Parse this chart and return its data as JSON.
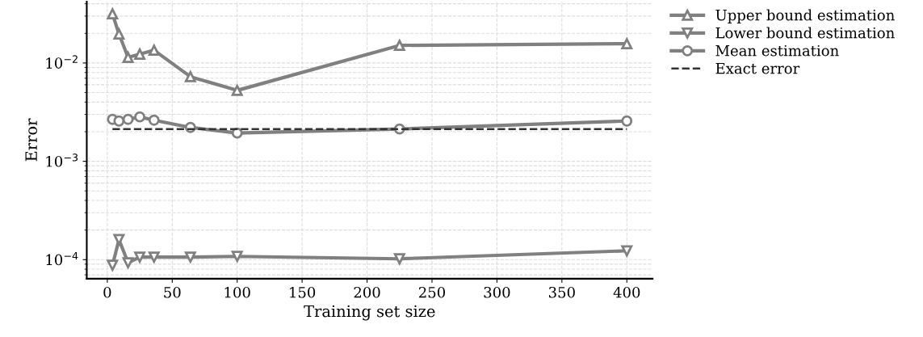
{
  "chart_data": {
    "type": "line",
    "xlabel": "Training set size",
    "ylabel": "Error",
    "log": "y",
    "grid": true,
    "legend": "top right",
    "line_style": "solid",
    "x": [
      4,
      9,
      16,
      25,
      36,
      64,
      100,
      225,
      400
    ],
    "series": [
      {
        "name": "Upper bound estimation",
        "color": "#808080",
        "marker": "triangle",
        "values": [
          0.0316,
          0.0197,
          0.0114,
          0.0123,
          0.0135,
          0.00725,
          0.00526,
          0.0151,
          0.0157
        ]
      },
      {
        "name": "Lower bound estimation",
        "color": "#808080",
        "marker": "triangle-down",
        "values": [
          8.77e-05,
          0.00016,
          9.3e-05,
          0.000106,
          0.000106,
          0.000106,
          0.000108,
          0.000102,
          0.000123
        ]
      },
      {
        "name": "Mean estimation",
        "color": "#808080",
        "marker": "circle",
        "values": [
          0.00267,
          0.00257,
          0.00267,
          0.00283,
          0.00262,
          0.00221,
          0.00194,
          0.00213,
          0.00257
        ]
      },
      {
        "name": "Exact error",
        "color": "#333333",
        "marker": "none",
        "line_style": "dashed",
        "x": [
          4,
          400
        ],
        "values": [
          0.00213,
          0.00213
        ]
      }
    ],
    "xlim": [
      -15.8,
      419.8
    ],
    "xticks": [
      0,
      50,
      100,
      150,
      200,
      250,
      300,
      350,
      400
    ],
    "ylim": [
      6.4e-05,
      0.042
    ],
    "yticks": [
      {
        "value": 0.0001,
        "label": "10$^{−4}$"
      },
      {
        "value": 0.001,
        "label": "10$^{−3}$"
      },
      {
        "value": 0.01,
        "label": "10$^{−2}$"
      }
    ]
  }
}
